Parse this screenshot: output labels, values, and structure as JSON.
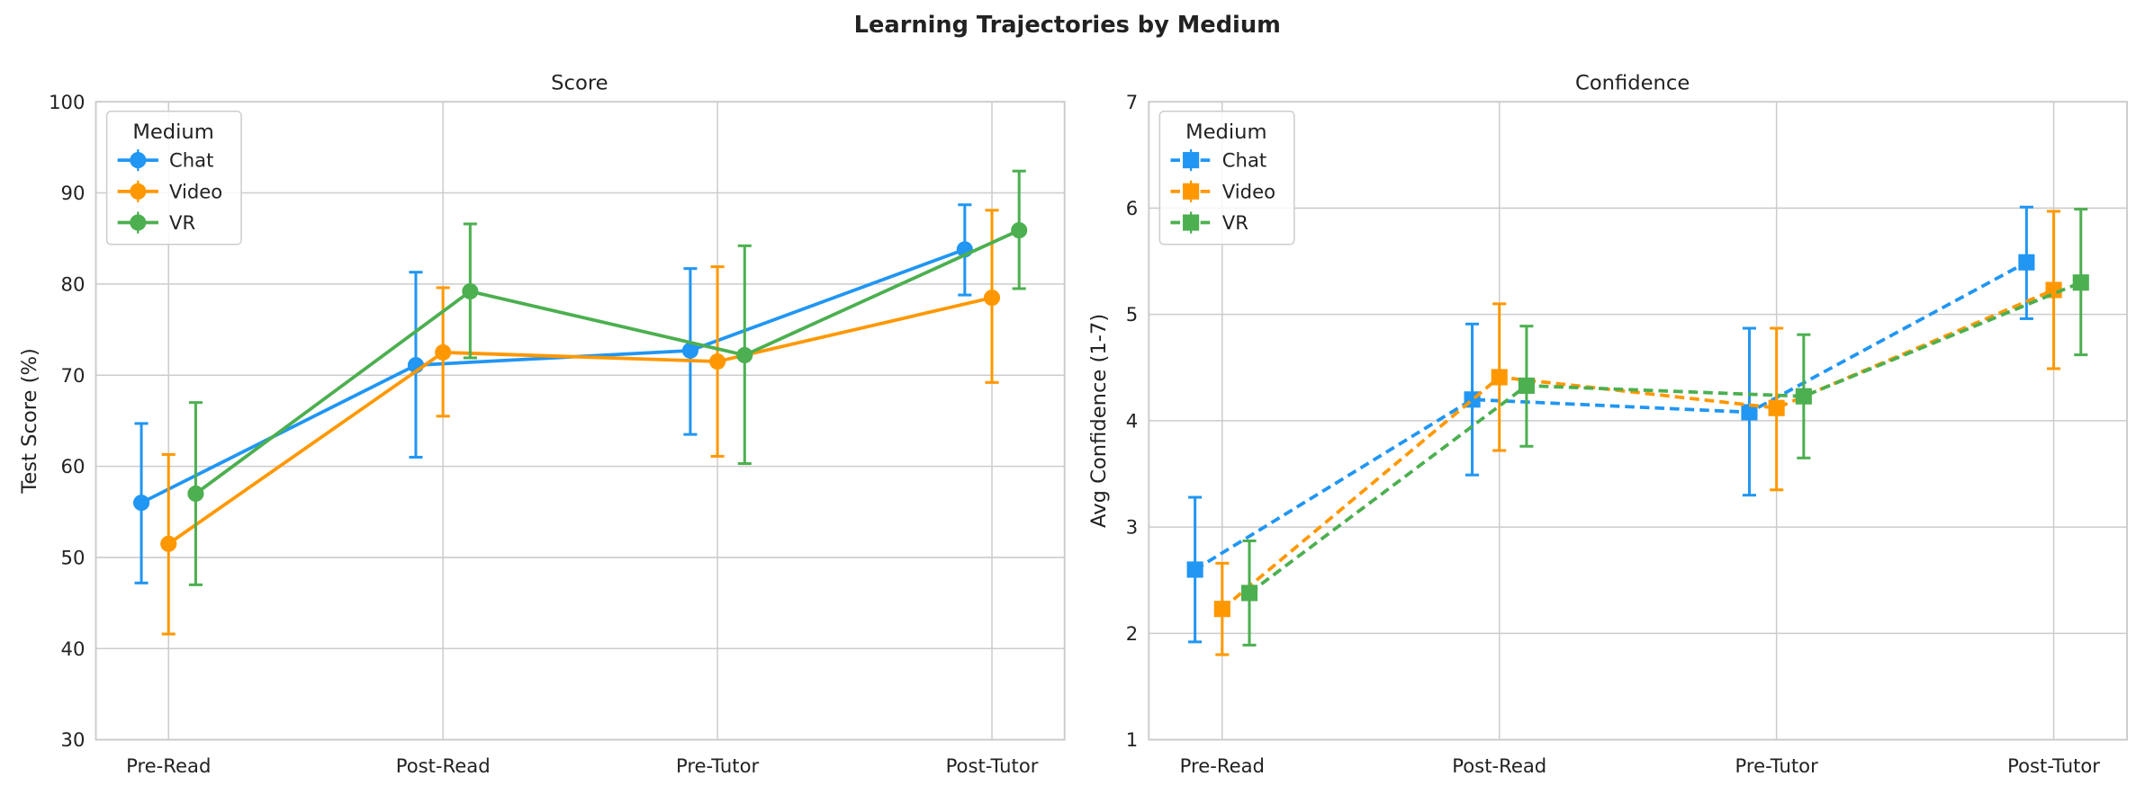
{
  "chart_data": {
    "title": "Learning Trajectories by Medium",
    "colors": {
      "Chat": "#2196F3",
      "Video": "#FF9800",
      "VR": "#4CAF50"
    },
    "grid": true,
    "panels": [
      {
        "type": "line",
        "title": "Score",
        "xlabel": "",
        "ylabel": "Test Score (%)",
        "ylim": [
          30,
          100
        ],
        "yticks": [
          "30",
          "40",
          "50",
          "60",
          "70",
          "80",
          "90",
          "100"
        ],
        "categories": [
          "Pre-Read",
          "Post-Read",
          "Pre-Tutor",
          "Post-Tutor"
        ],
        "marker": "circle",
        "linestyle": "solid",
        "legend": {
          "title": "Medium",
          "placement": "top-left"
        },
        "series": [
          {
            "name": "Chat",
            "values": [
              56.0,
              71.1,
              72.7,
              83.8
            ],
            "err_low": [
              47.2,
              61.0,
              63.5,
              78.8
            ],
            "err_high": [
              64.7,
              81.3,
              81.7,
              88.7
            ]
          },
          {
            "name": "Video",
            "values": [
              51.5,
              72.5,
              71.5,
              78.5
            ],
            "err_low": [
              41.6,
              65.5,
              61.1,
              69.2
            ],
            "err_high": [
              61.3,
              79.6,
              81.9,
              88.1
            ]
          },
          {
            "name": "VR",
            "values": [
              57.0,
              79.2,
              72.2,
              85.9
            ],
            "err_low": [
              47.0,
              71.9,
              60.3,
              79.5
            ],
            "err_high": [
              67.0,
              86.6,
              84.2,
              92.4
            ]
          }
        ]
      },
      {
        "type": "line",
        "title": "Confidence",
        "xlabel": "",
        "ylabel": "Avg Confidence (1-7)",
        "ylim": [
          1,
          7
        ],
        "yticks": [
          "1",
          "2",
          "3",
          "4",
          "5",
          "6",
          "7"
        ],
        "categories": [
          "Pre-Read",
          "Post-Read",
          "Pre-Tutor",
          "Post-Tutor"
        ],
        "marker": "square",
        "linestyle": "dashed",
        "legend": {
          "title": "Medium",
          "placement": "top-left"
        },
        "series": [
          {
            "name": "Chat",
            "values": [
              2.6,
              4.2,
              4.08,
              5.49
            ],
            "err_low": [
              1.92,
              3.49,
              3.3,
              4.96
            ],
            "err_high": [
              3.28,
              4.91,
              4.87,
              6.01
            ]
          },
          {
            "name": "Video",
            "values": [
              2.23,
              4.41,
              4.12,
              5.23
            ],
            "err_low": [
              1.8,
              3.72,
              3.35,
              4.49
            ],
            "err_high": [
              2.66,
              5.1,
              4.87,
              5.97
            ]
          },
          {
            "name": "VR",
            "values": [
              2.38,
              4.33,
              4.23,
              5.3
            ],
            "err_low": [
              1.89,
              3.76,
              3.65,
              4.62
            ],
            "err_high": [
              2.87,
              4.89,
              4.81,
              5.99
            ]
          }
        ]
      }
    ]
  }
}
